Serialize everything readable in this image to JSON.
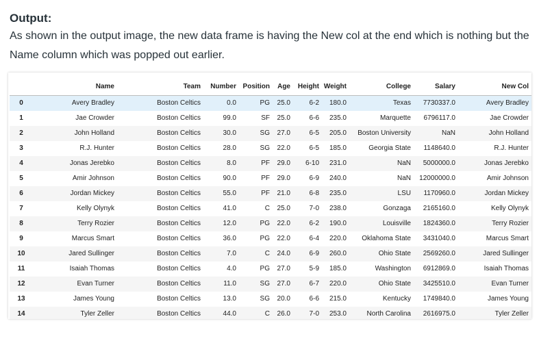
{
  "heading": "Output:",
  "description": "As shown in the output image, the new data frame is having the New col at the end which is nothing but the Name column which was popped out earlier.",
  "table": {
    "columns": [
      "",
      "Name",
      "Team",
      "Number",
      "Position",
      "Age",
      "Height",
      "Weight",
      "College",
      "Salary",
      "New Col"
    ],
    "rows": [
      [
        "0",
        "Avery Bradley",
        "Boston Celtics",
        "0.0",
        "PG",
        "25.0",
        "6-2",
        "180.0",
        "Texas",
        "7730337.0",
        "Avery Bradley"
      ],
      [
        "1",
        "Jae Crowder",
        "Boston Celtics",
        "99.0",
        "SF",
        "25.0",
        "6-6",
        "235.0",
        "Marquette",
        "6796117.0",
        "Jae Crowder"
      ],
      [
        "2",
        "John Holland",
        "Boston Celtics",
        "30.0",
        "SG",
        "27.0",
        "6-5",
        "205.0",
        "Boston University",
        "NaN",
        "John Holland"
      ],
      [
        "3",
        "R.J. Hunter",
        "Boston Celtics",
        "28.0",
        "SG",
        "22.0",
        "6-5",
        "185.0",
        "Georgia State",
        "1148640.0",
        "R.J. Hunter"
      ],
      [
        "4",
        "Jonas Jerebko",
        "Boston Celtics",
        "8.0",
        "PF",
        "29.0",
        "6-10",
        "231.0",
        "NaN",
        "5000000.0",
        "Jonas Jerebko"
      ],
      [
        "5",
        "Amir Johnson",
        "Boston Celtics",
        "90.0",
        "PF",
        "29.0",
        "6-9",
        "240.0",
        "NaN",
        "12000000.0",
        "Amir Johnson"
      ],
      [
        "6",
        "Jordan Mickey",
        "Boston Celtics",
        "55.0",
        "PF",
        "21.0",
        "6-8",
        "235.0",
        "LSU",
        "1170960.0",
        "Jordan Mickey"
      ],
      [
        "7",
        "Kelly Olynyk",
        "Boston Celtics",
        "41.0",
        "C",
        "25.0",
        "7-0",
        "238.0",
        "Gonzaga",
        "2165160.0",
        "Kelly Olynyk"
      ],
      [
        "8",
        "Terry Rozier",
        "Boston Celtics",
        "12.0",
        "PG",
        "22.0",
        "6-2",
        "190.0",
        "Louisville",
        "1824360.0",
        "Terry Rozier"
      ],
      [
        "9",
        "Marcus Smart",
        "Boston Celtics",
        "36.0",
        "PG",
        "22.0",
        "6-4",
        "220.0",
        "Oklahoma State",
        "3431040.0",
        "Marcus Smart"
      ],
      [
        "10",
        "Jared Sullinger",
        "Boston Celtics",
        "7.0",
        "C",
        "24.0",
        "6-9",
        "260.0",
        "Ohio State",
        "2569260.0",
        "Jared Sullinger"
      ],
      [
        "11",
        "Isaiah Thomas",
        "Boston Celtics",
        "4.0",
        "PG",
        "27.0",
        "5-9",
        "185.0",
        "Washington",
        "6912869.0",
        "Isaiah Thomas"
      ],
      [
        "12",
        "Evan Turner",
        "Boston Celtics",
        "11.0",
        "SG",
        "27.0",
        "6-7",
        "220.0",
        "Ohio State",
        "3425510.0",
        "Evan Turner"
      ],
      [
        "13",
        "James Young",
        "Boston Celtics",
        "13.0",
        "SG",
        "20.0",
        "6-6",
        "215.0",
        "Kentucky",
        "1749840.0",
        "James Young"
      ],
      [
        "14",
        "Tyler Zeller",
        "Boston Celtics",
        "44.0",
        "C",
        "26.0",
        "7-0",
        "253.0",
        "North Carolina",
        "2616975.0",
        "Tyler Zeller"
      ]
    ],
    "highlighted_row": 0
  },
  "colors": {
    "text": "#273239",
    "row_stripe": "#f5f5f5",
    "row_hover": "#e1f0fa",
    "header_border": "#bdbdbd"
  }
}
